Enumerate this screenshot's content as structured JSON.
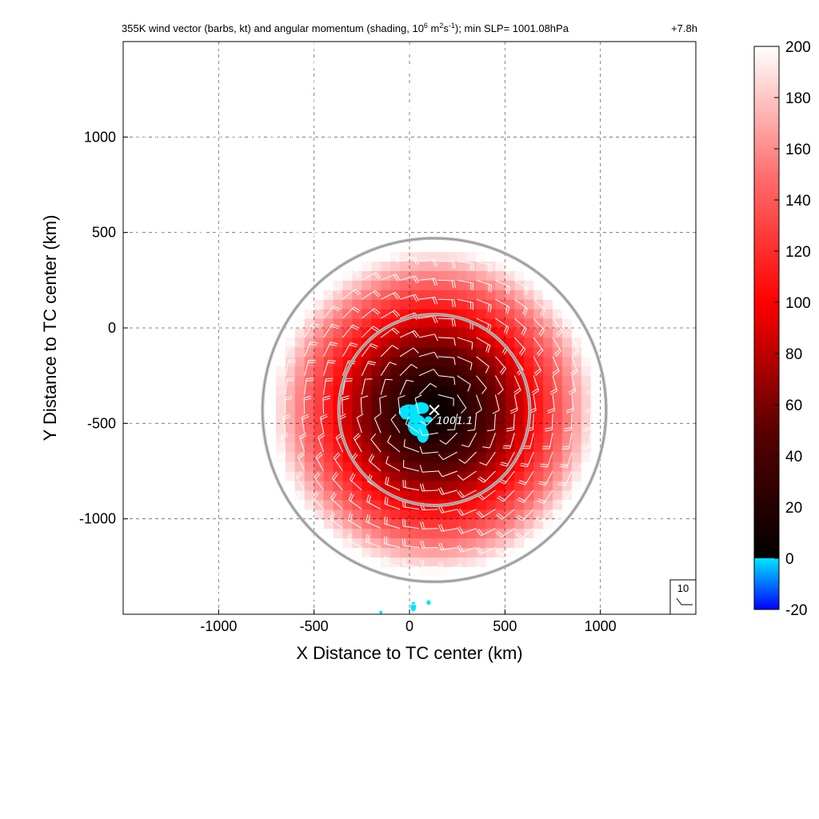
{
  "title": {
    "part1": "355K wind vector (barbs, kt) and angular momentum (shading, 10",
    "sup1": "6",
    "part2": " m",
    "sup2": "2",
    "part3": "s",
    "sup3": "-1",
    "part4": "); min SLP= 1001.08hPa",
    "time": "+7.8h"
  },
  "chart_data": {
    "type": "heatmap",
    "xlabel": "X Distance to TC center (km)",
    "ylabel": "Y Distance to TC center (km)",
    "xlim": [
      -1500,
      1500
    ],
    "ylim": [
      -1500,
      1500
    ],
    "xticks": [
      -1000,
      -500,
      0,
      500,
      1000
    ],
    "yticks": [
      1000,
      500,
      0,
      -500,
      -1000
    ],
    "xtick_labels": [
      "-1000",
      "-500",
      "0",
      "500",
      "1000"
    ],
    "ytick_labels": [
      "1000",
      "500",
      "0",
      "-500",
      "-1000"
    ],
    "grid": true,
    "colorbar": {
      "ticks": [
        200,
        180,
        160,
        140,
        120,
        100,
        80,
        60,
        40,
        20,
        0,
        -20
      ],
      "labels": [
        "200",
        "180",
        "160",
        "140",
        "120",
        "100",
        "80",
        "60",
        "40",
        "20",
        "0",
        "-20"
      ],
      "range": [
        -20,
        200
      ]
    },
    "center_marker": {
      "x": 130,
      "y": -430,
      "label": "1001.1"
    },
    "range_rings_km": [
      500,
      900
    ],
    "barb_key": {
      "label": "10"
    },
    "colors": {
      "min": "#0000ff",
      "cyan": "#00e5ff",
      "dark": "#000000",
      "red": "#ff0000",
      "max": "#ffffff"
    }
  }
}
